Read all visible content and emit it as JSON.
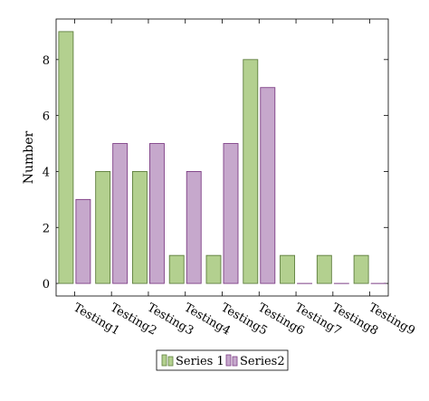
{
  "chart_data": {
    "type": "bar",
    "title": "",
    "xlabel": "",
    "ylabel": "Number",
    "categories": [
      "Testing1",
      "Testing2",
      "Testing3",
      "Testing4",
      "Testing5",
      "Testing6",
      "Testing7",
      "Testing8",
      "Testing9"
    ],
    "series": [
      {
        "name": "Series 1",
        "values": [
          9,
          4,
          4,
          1,
          1,
          8,
          1,
          1,
          1
        ],
        "fill": "#b3d08f",
        "stroke": "#5f7f3f"
      },
      {
        "name": "Series2",
        "values": [
          3,
          5,
          5,
          4,
          5,
          7,
          0,
          0,
          0
        ],
        "fill": "#c6a8cc",
        "stroke": "#7e3f86"
      }
    ],
    "ylim": [
      -0.45,
      9.45
    ],
    "yticks": [
      0,
      2,
      4,
      6,
      8
    ],
    "grid": false,
    "legend_position": "bottom-center"
  }
}
